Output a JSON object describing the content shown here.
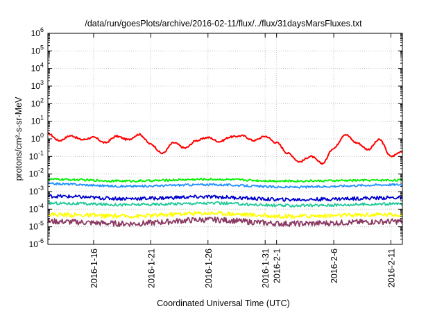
{
  "chart_data": {
    "type": "line",
    "title": "/data/run/goesPlots/archive/2016-02-11/flux/../flux/31daysMarsFluxes.txt",
    "xlabel": "Coordinated Universal Time (UTC)",
    "ylabel": "protons/cm²-s-sr-MeV",
    "y_scale": "log",
    "ylim_exponent": [
      -6,
      6
    ],
    "y_ticks": [
      "10-6",
      "10-5",
      "10-4",
      "10-3",
      "10-2",
      "10-1",
      "100",
      "101",
      "102",
      "103",
      "104",
      "105",
      "106"
    ],
    "x_range": [
      "2016-01-12",
      "2016-02-12"
    ],
    "grid": true,
    "x_ticks": [
      {
        "date": "2016-01-16",
        "lines": [
          "2016-1-16"
        ]
      },
      {
        "date": "2016-01-21",
        "lines": [
          "2016-1-21"
        ]
      },
      {
        "date": "2016-01-26",
        "lines": [
          "2016-1-26"
        ]
      },
      {
        "date": "2016-01-31",
        "lines": [
          "2016-1-31"
        ]
      },
      {
        "date": "2016-02-01",
        "lines": [
          "2016-2-1"
        ]
      },
      {
        "date": "2016-02-06",
        "lines": [
          "2016-2-6"
        ]
      },
      {
        "date": "2016-02-11",
        "lines": [
          "2016-2-11"
        ]
      }
    ],
    "series": [
      {
        "color": "#ff0000",
        "noise": 0.05,
        "dates": [
          "2016-01-12",
          "2016-01-13",
          "2016-01-14",
          "2016-01-15",
          "2016-01-16",
          "2016-01-17",
          "2016-01-18",
          "2016-01-19",
          "2016-01-20",
          "2016-01-21",
          "2016-01-22",
          "2016-01-23",
          "2016-01-24",
          "2016-01-25",
          "2016-01-26",
          "2016-01-27",
          "2016-01-28",
          "2016-01-29",
          "2016-01-30",
          "2016-01-31",
          "2016-02-01",
          "2016-02-02",
          "2016-02-03",
          "2016-02-04",
          "2016-02-05",
          "2016-02-06",
          "2016-02-07",
          "2016-02-08",
          "2016-02-09",
          "2016-02-10",
          "2016-02-11",
          "2016-02-12"
        ],
        "values": [
          2,
          0.8,
          1.5,
          0.9,
          1.2,
          0.6,
          1.4,
          0.9,
          1.8,
          0.5,
          0.15,
          0.6,
          0.3,
          0.8,
          1.2,
          0.7,
          1.3,
          1.5,
          0.8,
          1.4,
          0.6,
          0.15,
          0.05,
          0.1,
          0.04,
          0.3,
          1.8,
          0.6,
          0.25,
          0.9,
          0.1,
          0.2
        ]
      },
      {
        "color": "#00ee00",
        "noise": 0.06,
        "dates": [
          "2016-01-12",
          "2016-01-19",
          "2016-01-26",
          "2016-02-02",
          "2016-02-12"
        ],
        "values": [
          0.005,
          0.004,
          0.005,
          0.004,
          0.0045
        ]
      },
      {
        "color": "#1e90ff",
        "noise": 0.06,
        "dates": [
          "2016-01-12",
          "2016-01-19",
          "2016-01-26",
          "2016-02-02",
          "2016-02-12"
        ],
        "values": [
          0.0028,
          0.002,
          0.0025,
          0.0018,
          0.0025
        ]
      },
      {
        "color": "#0000cd",
        "noise": 0.1,
        "dates": [
          "2016-01-12",
          "2016-01-19",
          "2016-01-26",
          "2016-02-02",
          "2016-02-12"
        ],
        "values": [
          0.00055,
          0.0004,
          0.0005,
          0.00035,
          0.00045
        ]
      },
      {
        "color": "#20c997",
        "noise": 0.08,
        "dates": [
          "2016-01-12",
          "2016-01-19",
          "2016-01-26",
          "2016-02-02",
          "2016-02-12"
        ],
        "values": [
          0.00022,
          0.00018,
          0.00022,
          0.00016,
          0.0002
        ]
      },
      {
        "color": "#ffff00",
        "noise": 0.12,
        "dates": [
          "2016-01-12",
          "2016-01-19",
          "2016-01-26",
          "2016-02-02",
          "2016-02-12"
        ],
        "values": [
          5e-05,
          4e-05,
          6e-05,
          4e-05,
          5e-05
        ]
      },
      {
        "color": "#8b3a62",
        "noise": 0.16,
        "dates": [
          "2016-01-12",
          "2016-01-19",
          "2016-01-26",
          "2016-02-02",
          "2016-02-12"
        ],
        "values": [
          2e-05,
          1.5e-05,
          2.5e-05,
          1.5e-05,
          2e-05
        ]
      }
    ]
  }
}
